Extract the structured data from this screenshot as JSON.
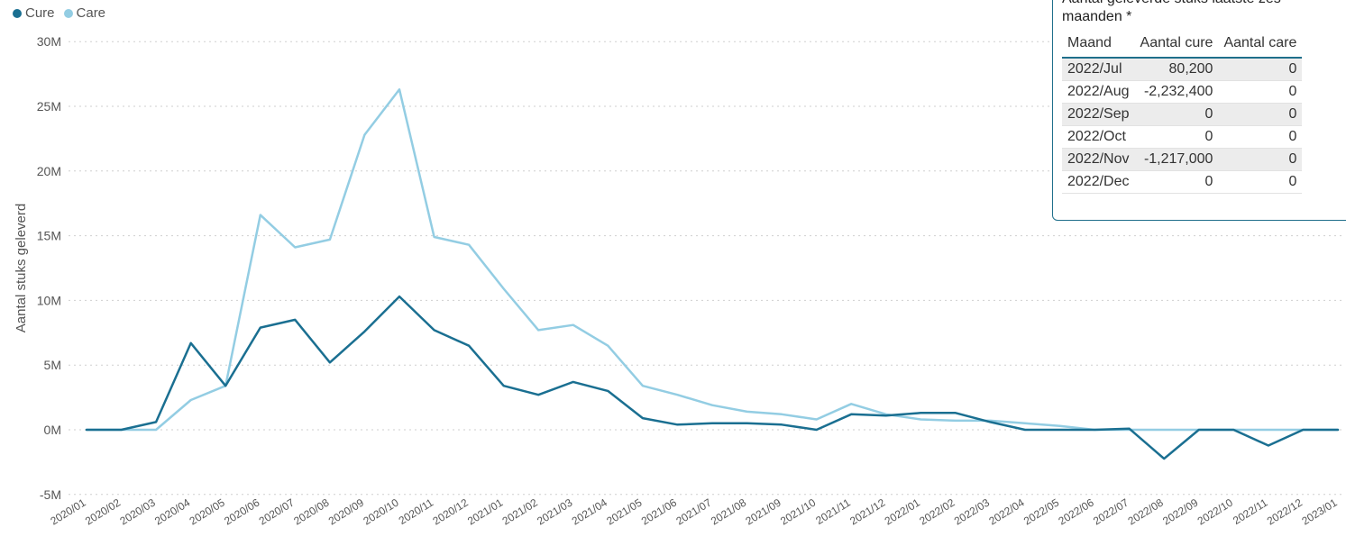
{
  "legend": {
    "cure_label": "Cure",
    "care_label": "Care"
  },
  "colors": {
    "cure": "#1a6f91",
    "care": "#93cde3",
    "panel_border": "#1f6f8b"
  },
  "table": {
    "title": "Aantal geleverde stuks laatste zes maanden *",
    "headers": [
      "Maand",
      "Aantal cure",
      "Aantal care"
    ],
    "rows": [
      {
        "maand": "2022/Jul",
        "cure": "80,200",
        "care": "0"
      },
      {
        "maand": "2022/Aug",
        "cure": "-2,232,400",
        "care": "0"
      },
      {
        "maand": "2022/Sep",
        "cure": "0",
        "care": "0"
      },
      {
        "maand": "2022/Oct",
        "cure": "0",
        "care": "0"
      },
      {
        "maand": "2022/Nov",
        "cure": "-1,217,000",
        "care": "0"
      },
      {
        "maand": "2022/Dec",
        "cure": "0",
        "care": "0"
      }
    ]
  },
  "chart_data": {
    "type": "line",
    "ylabel": "Aantal stuks geleverd",
    "ylim": [
      -5000000,
      30000000
    ],
    "yticks": [
      -5000000,
      0,
      5000000,
      10000000,
      15000000,
      20000000,
      25000000,
      30000000
    ],
    "ytick_labels": [
      "-5M",
      "0M",
      "5M",
      "10M",
      "15M",
      "20M",
      "25M",
      "30M"
    ],
    "grid": true,
    "legend_position": "top-left",
    "categories": [
      "2020/01",
      "2020/02",
      "2020/03",
      "2020/04",
      "2020/05",
      "2020/06",
      "2020/07",
      "2020/08",
      "2020/09",
      "2020/10",
      "2020/11",
      "2020/12",
      "2021/01",
      "2021/02",
      "2021/03",
      "2021/04",
      "2021/05",
      "2021/06",
      "2021/07",
      "2021/08",
      "2021/09",
      "2021/10",
      "2021/11",
      "2021/12",
      "2022/01",
      "2022/02",
      "2022/03",
      "2022/04",
      "2022/05",
      "2022/06",
      "2022/07",
      "2022/08",
      "2022/09",
      "2022/10",
      "2022/11",
      "2022/12",
      "2023/01"
    ],
    "series": [
      {
        "name": "Cure",
        "values": [
          0,
          0,
          600000,
          6700000,
          3400000,
          7900000,
          8500000,
          5200000,
          7600000,
          10300000,
          7700000,
          6500000,
          3400000,
          2700000,
          3700000,
          3000000,
          900000,
          400000,
          500000,
          500000,
          400000,
          0,
          1200000,
          1100000,
          1300000,
          1300000,
          600000,
          0,
          0,
          0,
          80200,
          -2232400,
          0,
          0,
          -1217000,
          0,
          0
        ]
      },
      {
        "name": "Care",
        "values": [
          0,
          0,
          0,
          2300000,
          3400000,
          16600000,
          14100000,
          14700000,
          22800000,
          26300000,
          14900000,
          14300000,
          10900000,
          7700000,
          8100000,
          6500000,
          3400000,
          2700000,
          1900000,
          1400000,
          1200000,
          800000,
          2000000,
          1200000,
          800000,
          700000,
          700000,
          500000,
          300000,
          0,
          0,
          0,
          0,
          0,
          0,
          0,
          0
        ]
      }
    ]
  }
}
